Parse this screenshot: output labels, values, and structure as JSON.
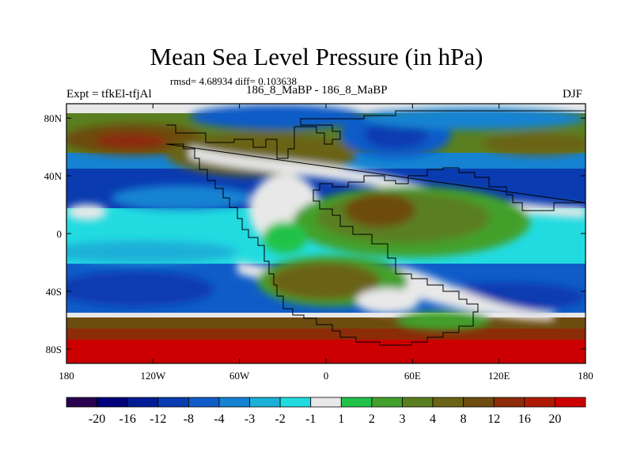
{
  "header": {
    "title": "Mean Sea Level Pressure (in hPa)",
    "stats": "rmsd= 4.68934 diff= 0.103638",
    "left_label": "Expt = tfkEl-tfjAl",
    "center_label": "186_8_MaBP - 186_8_MaBP",
    "right_label": "DJF"
  },
  "axes": {
    "x_ticks": [
      {
        "lon": -180,
        "label": "180"
      },
      {
        "lon": -120,
        "label": "120W"
      },
      {
        "lon": -60,
        "label": "60W"
      },
      {
        "lon": 0,
        "label": "0"
      },
      {
        "lon": 60,
        "label": "60E"
      },
      {
        "lon": 120,
        "label": "120E"
      },
      {
        "lon": 180,
        "label": "180"
      }
    ],
    "y_ticks": [
      {
        "lat": 80,
        "label": "80N"
      },
      {
        "lat": 40,
        "label": "40N"
      },
      {
        "lat": 0,
        "label": "0"
      },
      {
        "lat": -40,
        "label": "40S"
      },
      {
        "lat": -80,
        "label": "80S"
      }
    ]
  },
  "colorbar": {
    "colors": [
      "#28004f",
      "#00007a",
      "#001b94",
      "#0a3bb0",
      "#0f5cc8",
      "#1583d2",
      "#1bb0d8",
      "#22dbe0",
      "#e8e8e8",
      "#22c24a",
      "#42a02c",
      "#5a7f20",
      "#6a6314",
      "#6d4c10",
      "#8c2c08",
      "#b01a04",
      "#cc0000"
    ],
    "labels": [
      "-20",
      "-16",
      "-12",
      "-8",
      "-4",
      "-3",
      "-2",
      "-1",
      "1",
      "2",
      "3",
      "4",
      "8",
      "12",
      "16",
      "20"
    ]
  }
}
